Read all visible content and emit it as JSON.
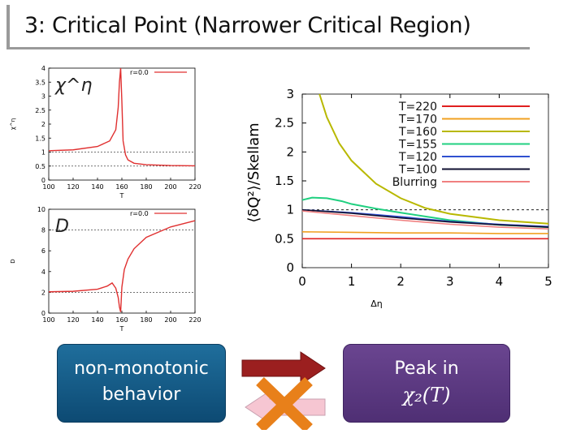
{
  "slide": {
    "title": "3: Critical Point (Narrower Critical Region)"
  },
  "left_box": {
    "line1": "non-monotonic",
    "line2": "behavior"
  },
  "right_box": {
    "text": "Peak in",
    "math": "χ₂(T)"
  },
  "colors": {
    "red_curve": "#e03030",
    "arrow_right": "#9b1f1f",
    "cross": "#e8801a",
    "arrow_left_fill": "#f6c6d2"
  },
  "chart_data": [
    {
      "type": "line",
      "ylabel_math": "χ^η",
      "axis_side_label": "χ^η",
      "legend": "r=0.0",
      "xlabel": "T",
      "xlim": [
        100,
        220
      ],
      "ylim": [
        0,
        4
      ],
      "xticks": [
        "100",
        "120",
        "140",
        "160",
        "180",
        "200",
        "220"
      ],
      "yticks": [
        "0",
        "0.5",
        "1",
        "1.5",
        "2",
        "2.5",
        "3",
        "3.5",
        "4"
      ],
      "reference_lines": [
        1,
        0.5
      ],
      "series": [
        {
          "name": "r=0.0",
          "x": [
            100,
            120,
            140,
            150,
            155,
            157,
            158,
            159,
            160,
            161,
            163,
            165,
            170,
            180,
            200,
            220
          ],
          "y": [
            1.05,
            1.08,
            1.2,
            1.4,
            1.8,
            2.6,
            3.5,
            4,
            2.8,
            1.4,
            0.9,
            0.72,
            0.6,
            0.55,
            0.52,
            0.51
          ]
        }
      ]
    },
    {
      "type": "line",
      "ylabel_math": "D",
      "axis_side_label": "D",
      "legend": "r=0.0",
      "xlabel": "T",
      "xlim": [
        100,
        220
      ],
      "ylim": [
        0,
        10
      ],
      "xticks": [
        "100",
        "120",
        "140",
        "160",
        "180",
        "200",
        "220"
      ],
      "yticks": [
        "0",
        "2",
        "4",
        "6",
        "8",
        "10"
      ],
      "reference_lines": [
        2,
        8
      ],
      "series": [
        {
          "name": "r=0.0",
          "x": [
            100,
            120,
            140,
            148,
            152,
            155,
            157,
            158,
            159,
            160,
            162,
            165,
            170,
            180,
            200,
            220
          ],
          "y": [
            2.05,
            2.1,
            2.3,
            2.6,
            2.9,
            2.4,
            1.5,
            0.6,
            0.1,
            2.5,
            4.2,
            5.2,
            6.2,
            7.3,
            8.3,
            8.9
          ]
        }
      ]
    },
    {
      "type": "line",
      "ylabel_math": "⟨δQ²⟩/Skellam",
      "xlabel": "Δη",
      "xlim": [
        0,
        5
      ],
      "ylim": [
        0,
        3
      ],
      "xticks": [
        "0",
        "1",
        "2",
        "3",
        "4",
        "5"
      ],
      "yticks": [
        "0",
        "0.5",
        "1",
        "1.5",
        "2",
        "2.5",
        "3"
      ],
      "reference_lines": [
        1
      ],
      "series": [
        {
          "name": "T=220",
          "color": "#e02020",
          "x": [
            0,
            5
          ],
          "y": [
            0.5,
            0.5
          ]
        },
        {
          "name": "T=170",
          "color": "#f0a020",
          "x": [
            0,
            1,
            2,
            3,
            4,
            5
          ],
          "y": [
            0.62,
            0.61,
            0.6,
            0.6,
            0.59,
            0.59
          ]
        },
        {
          "name": "T=160",
          "color": "#b8b800",
          "x": [
            0.35,
            0.5,
            0.75,
            1,
            1.5,
            2,
            2.5,
            3,
            4,
            5
          ],
          "y": [
            3,
            2.6,
            2.15,
            1.85,
            1.45,
            1.2,
            1.03,
            0.93,
            0.82,
            0.76
          ]
        },
        {
          "name": "T=155",
          "color": "#20d080",
          "x": [
            0,
            0.2,
            0.5,
            0.8,
            1,
            1.5,
            2,
            3,
            4,
            5
          ],
          "y": [
            1.17,
            1.21,
            1.2,
            1.15,
            1.1,
            1.02,
            0.95,
            0.82,
            0.74,
            0.7
          ]
        },
        {
          "name": "T=120",
          "color": "#3050d0",
          "x": [
            0,
            1,
            2,
            3,
            4,
            5
          ],
          "y": [
            1.0,
            0.95,
            0.88,
            0.8,
            0.75,
            0.71
          ]
        },
        {
          "name": "T=100",
          "color": "#101030",
          "x": [
            0,
            1,
            2,
            3,
            4,
            5
          ],
          "y": [
            1.0,
            0.94,
            0.86,
            0.79,
            0.74,
            0.7
          ]
        },
        {
          "name": "Blurring",
          "color": "#f08080",
          "x": [
            0,
            1,
            2,
            3,
            4,
            5
          ],
          "y": [
            0.98,
            0.9,
            0.82,
            0.75,
            0.7,
            0.67
          ]
        }
      ]
    }
  ]
}
